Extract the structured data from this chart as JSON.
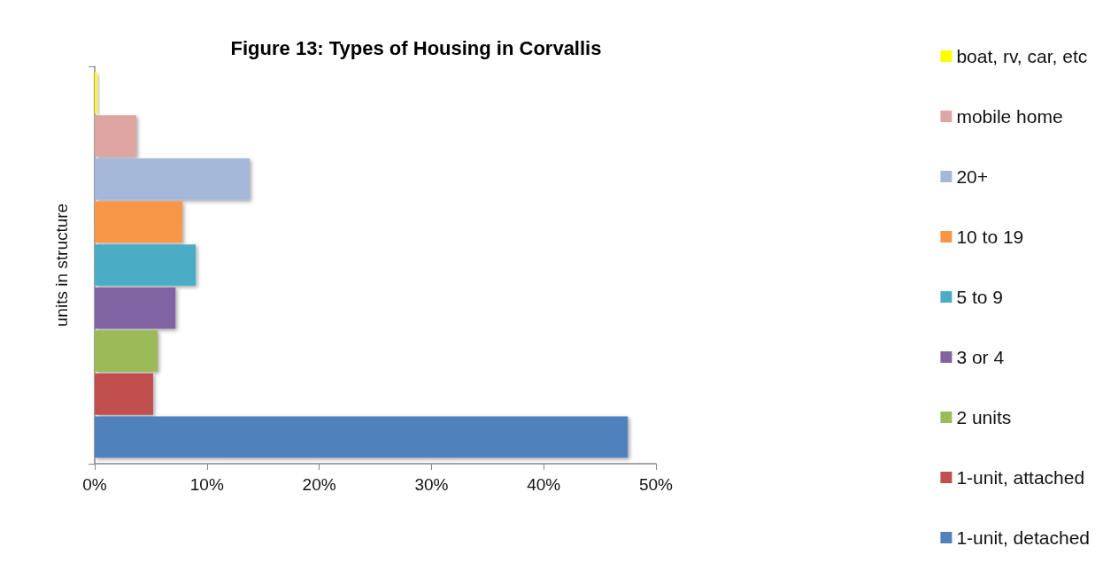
{
  "chart_data": {
    "type": "bar",
    "orientation": "horizontal",
    "title": "Figure 13: Types of Housing in Corvallis",
    "ylabel": "units in structure",
    "categories": [
      null
    ],
    "series": [
      {
        "name": "boat, rv, car, etc",
        "color": "#ffff00",
        "values": [
          0.2
        ]
      },
      {
        "name": "mobile home",
        "color": "#dea5a3",
        "values": [
          3.7
        ]
      },
      {
        "name": "20+",
        "color": "#a5b8d9",
        "values": [
          13.8
        ]
      },
      {
        "name": "10 to 19",
        "color": "#f79646",
        "values": [
          7.8
        ]
      },
      {
        "name": "5 to 9",
        "color": "#4bacc6",
        "values": [
          9.0
        ]
      },
      {
        "name": "3 or 4",
        "color": "#8064a2",
        "values": [
          7.2
        ]
      },
      {
        "name": "2 units",
        "color": "#9bbb59",
        "values": [
          5.6
        ]
      },
      {
        "name": "1-unit, attached",
        "color": "#c0504d",
        "values": [
          5.2
        ]
      },
      {
        "name": "1-unit, detached",
        "color": "#4f81bd",
        "values": [
          47.5
        ]
      }
    ],
    "xlim": [
      0,
      50
    ],
    "xticks": [
      {
        "value": 0,
        "label": "0%"
      },
      {
        "value": 10,
        "label": "10%"
      },
      {
        "value": 20,
        "label": "20%"
      },
      {
        "value": 30,
        "label": "30%"
      },
      {
        "value": 40,
        "label": "40%"
      },
      {
        "value": 50,
        "label": "50%"
      }
    ],
    "grid": false,
    "legend": "right"
  }
}
